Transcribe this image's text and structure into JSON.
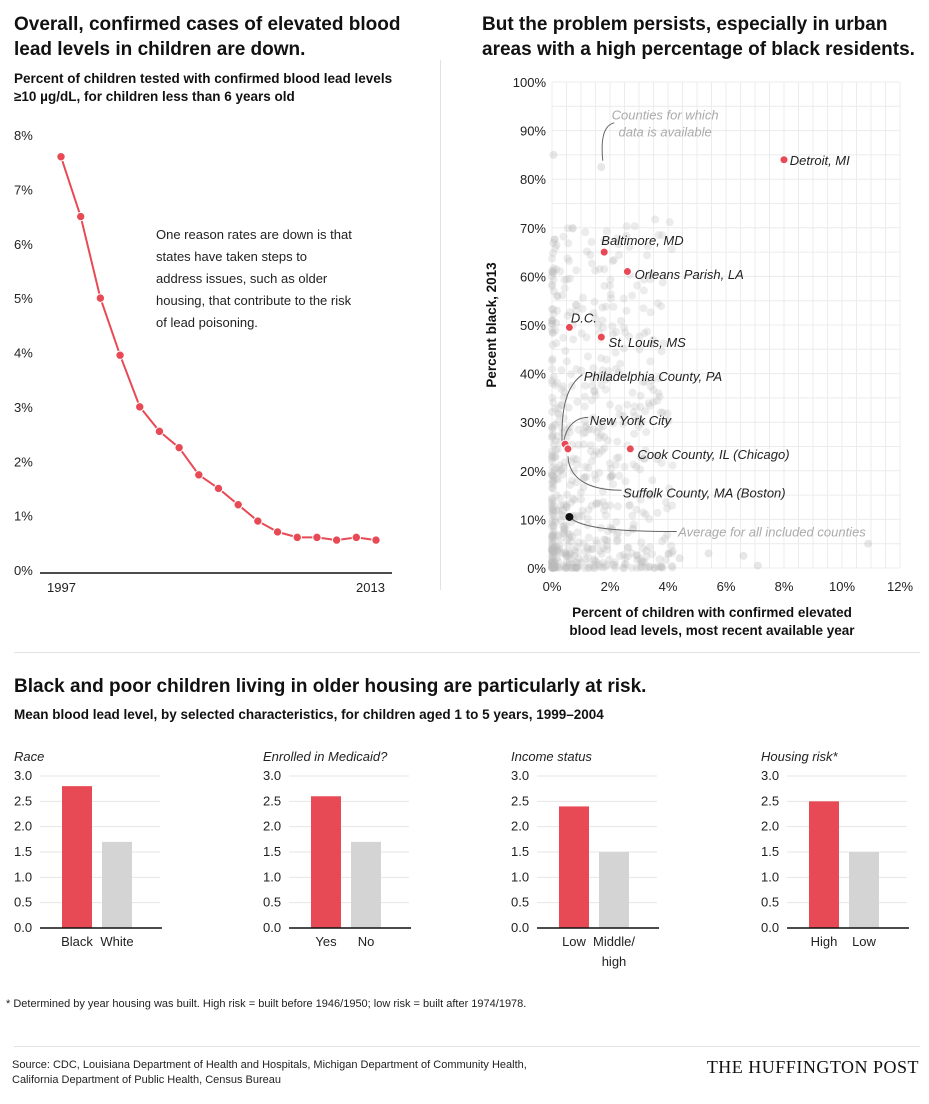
{
  "line_panel": {
    "title": "Overall, confirmed cases of elevated blood lead levels in children are down.",
    "subtitle": "Percent of children tested with confirmed blood lead levels ≥10 µg/dL, for children less than 6 years old",
    "annotation": "One reason rates are down is that states have taken steps to address issues, such as older housing, that contribute to the risk of lead poisoning."
  },
  "scatter_panel": {
    "title": "But the problem persists, especially in urban areas with a high percentage of black residents.",
    "annotations": {
      "counties": "Counties for which data is available",
      "average": "Average for all included counties"
    }
  },
  "bars_panel": {
    "title": "Black and poor children living in older housing are particularly at risk.",
    "subtitle": "Mean blood lead level, by selected characteristics, for children aged 1 to 5 years, 1999–2004"
  },
  "footnote": "* Determined by year housing was built. High risk = built before 1946/1950; low risk = built after 1974/1978.",
  "source": "Source: CDC, Louisiana Department of Health and Hospitals, Michigan Department of Community Health, California Department of Public Health, Census Bureau",
  "brand": "THE HUFFINGTON POST",
  "colors": {
    "red": "#e84a55",
    "gray": "#d4d4d4",
    "dark": "#111111"
  },
  "chart_data": [
    {
      "type": "line",
      "x": [
        1997,
        1998,
        1999,
        2000,
        2001,
        2002,
        2003,
        2004,
        2005,
        2006,
        2007,
        2008,
        2009,
        2010,
        2011,
        2012,
        2013
      ],
      "values": [
        7.6,
        6.5,
        5.0,
        3.95,
        3.0,
        2.55,
        2.25,
        1.75,
        1.5,
        1.2,
        0.9,
        0.7,
        0.6,
        0.6,
        0.55,
        0.6,
        0.55
      ],
      "x_tick_labels": [
        "1997",
        "2013"
      ],
      "y_tick_labels": [
        "0%",
        "1%",
        "2%",
        "3%",
        "4%",
        "5%",
        "6%",
        "7%",
        "8%"
      ],
      "ylim": [
        0,
        8
      ]
    },
    {
      "type": "scatter",
      "xlabel": "Percent of children with confirmed elevated blood lead levels, most recent available year",
      "ylabel": "Percent black, 2013",
      "xlim": [
        0,
        12
      ],
      "ylim": [
        0,
        100
      ],
      "x_tick_labels": [
        "0%",
        "2%",
        "4%",
        "6%",
        "8%",
        "10%",
        "12%"
      ],
      "y_tick_labels": [
        "0%",
        "10%",
        "20%",
        "30%",
        "40%",
        "50%",
        "60%",
        "70%",
        "80%",
        "90%",
        "100%"
      ],
      "highlighted": [
        {
          "name": "Detroit, MI",
          "x": 8.0,
          "y": 84
        },
        {
          "name": "Baltimore, MD",
          "x": 1.8,
          "y": 65
        },
        {
          "name": "Orleans Parish, LA",
          "x": 2.6,
          "y": 61
        },
        {
          "name": "D.C.",
          "x": 0.6,
          "y": 49.5
        },
        {
          "name": "St. Louis, MS",
          "x": 1.7,
          "y": 47.5
        },
        {
          "name": "Philadelphia County, PA",
          "x": 0.5,
          "y": 25
        },
        {
          "name": "New York City",
          "x": 0.45,
          "y": 25.5
        },
        {
          "name": "Cook County, IL (Chicago)",
          "x": 2.7,
          "y": 24.5
        },
        {
          "name": "Suffolk County, MA (Boston)",
          "x": 0.55,
          "y": 24.5
        }
      ],
      "average": {
        "name": "Average for all included counties",
        "x": 0.6,
        "y": 10.5
      }
    },
    {
      "type": "bar",
      "title": "Race",
      "categories": [
        "Black",
        "White"
      ],
      "values": [
        2.8,
        1.7
      ],
      "ylim": [
        0,
        3
      ],
      "y_tick_labels": [
        "0.0",
        "0.5",
        "1.0",
        "1.5",
        "2.0",
        "2.5",
        "3.0"
      ]
    },
    {
      "type": "bar",
      "title": "Enrolled in Medicaid?",
      "categories": [
        "Yes",
        "No"
      ],
      "values": [
        2.6,
        1.7
      ],
      "ylim": [
        0,
        3
      ],
      "y_tick_labels": [
        "0.0",
        "0.5",
        "1.0",
        "1.5",
        "2.0",
        "2.5",
        "3.0"
      ]
    },
    {
      "type": "bar",
      "title": "Income status",
      "categories": [
        "Low",
        "Middle/ high"
      ],
      "values": [
        2.4,
        1.5
      ],
      "ylim": [
        0,
        3
      ],
      "y_tick_labels": [
        "0.0",
        "0.5",
        "1.0",
        "1.5",
        "2.0",
        "2.5",
        "3.0"
      ]
    },
    {
      "type": "bar",
      "title": "Housing risk*",
      "categories": [
        "High",
        "Low"
      ],
      "values": [
        2.5,
        1.5
      ],
      "ylim": [
        0,
        3
      ],
      "y_tick_labels": [
        "0.0",
        "0.5",
        "1.0",
        "1.5",
        "2.0",
        "2.5",
        "3.0"
      ]
    }
  ]
}
